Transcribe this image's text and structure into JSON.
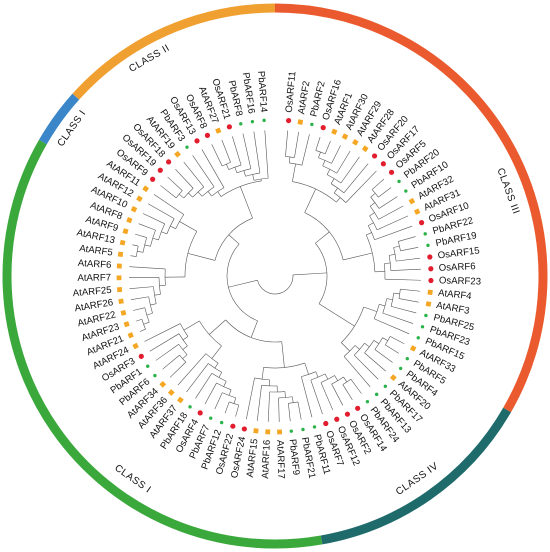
{
  "figure": {
    "classes": [
      {
        "label": "CLASS I",
        "color": "#3a86c8"
      },
      {
        "label": "CLASS II",
        "color": "#f0a030"
      },
      {
        "label": "CLASS III",
        "color": "#ea5a2e"
      },
      {
        "label": "CLASS IV",
        "color": "#1f6b6b"
      },
      {
        "label": "CLASS I",
        "color": "#3aa83a"
      }
    ],
    "species_colors": {
      "Os": "#e11d2e",
      "At": "#f5a623",
      "Pb": "#2bb34a"
    },
    "leaves": [
      {
        "name": "OsARF11",
        "species": "Os"
      },
      {
        "name": "AtARF2",
        "species": "At"
      },
      {
        "name": "PbARF2",
        "species": "Pb"
      },
      {
        "name": "OsARF16",
        "species": "Os"
      },
      {
        "name": "AtARF1",
        "species": "At"
      },
      {
        "name": "AtARF30",
        "species": "At"
      },
      {
        "name": "AtARF29",
        "species": "At"
      },
      {
        "name": "AtARF28",
        "species": "At"
      },
      {
        "name": "OsARF20",
        "species": "Os"
      },
      {
        "name": "OsARF17",
        "species": "Os"
      },
      {
        "name": "OsARF5",
        "species": "Os"
      },
      {
        "name": "PbARF20",
        "species": "Pb"
      },
      {
        "name": "PbARF10",
        "species": "Pb"
      },
      {
        "name": "AtARF32",
        "species": "At"
      },
      {
        "name": "AtARF31",
        "species": "At"
      },
      {
        "name": "OsARF10",
        "species": "Os"
      },
      {
        "name": "PbARF22",
        "species": "Pb"
      },
      {
        "name": "PbARF19",
        "species": "Pb"
      },
      {
        "name": "OsARF15",
        "species": "Os"
      },
      {
        "name": "OsARF6",
        "species": "Os"
      },
      {
        "name": "OsARF23",
        "species": "Os"
      },
      {
        "name": "AtARF4",
        "species": "At"
      },
      {
        "name": "AtARF3",
        "species": "At"
      },
      {
        "name": "PbARF25",
        "species": "Pb"
      },
      {
        "name": "PbARF23",
        "species": "Pb"
      },
      {
        "name": "PbARF15",
        "species": "Pb"
      },
      {
        "name": "AtARF33",
        "species": "At"
      },
      {
        "name": "PbARF5",
        "species": "Pb"
      },
      {
        "name": "PbARF4",
        "species": "Pb"
      },
      {
        "name": "AtARF20",
        "species": "At"
      },
      {
        "name": "PbARF17",
        "species": "Pb"
      },
      {
        "name": "PbARF13",
        "species": "Pb"
      },
      {
        "name": "PbARF24",
        "species": "Pb"
      },
      {
        "name": "OsARF14",
        "species": "Os"
      },
      {
        "name": "OsARF2",
        "species": "Os"
      },
      {
        "name": "OsARF12",
        "species": "Os"
      },
      {
        "name": "OsARF7",
        "species": "Os"
      },
      {
        "name": "PbARF11",
        "species": "Pb"
      },
      {
        "name": "PbARF21",
        "species": "Pb"
      },
      {
        "name": "PbARF9",
        "species": "Pb"
      },
      {
        "name": "AtARF17",
        "species": "At"
      },
      {
        "name": "AtARF16",
        "species": "At"
      },
      {
        "name": "AtARF15",
        "species": "At"
      },
      {
        "name": "OsARF24",
        "species": "Os"
      },
      {
        "name": "OsARF22",
        "species": "Os"
      },
      {
        "name": "PbARF12",
        "species": "Pb"
      },
      {
        "name": "PbARF7",
        "species": "Pb"
      },
      {
        "name": "OsARF4",
        "species": "Os"
      },
      {
        "name": "PbARF18",
        "species": "Pb"
      },
      {
        "name": "AtARF37",
        "species": "At"
      },
      {
        "name": "AtARF36",
        "species": "At"
      },
      {
        "name": "AtARF34",
        "species": "At"
      },
      {
        "name": "PbARF6",
        "species": "Pb"
      },
      {
        "name": "PbARF1",
        "species": "Pb"
      },
      {
        "name": "OsARF3",
        "species": "Os"
      },
      {
        "name": "AtARF24",
        "species": "At"
      },
      {
        "name": "AtARF21",
        "species": "At"
      },
      {
        "name": "AtARF23",
        "species": "At"
      },
      {
        "name": "AtARF22",
        "species": "At"
      },
      {
        "name": "AtARF26",
        "species": "At"
      },
      {
        "name": "AtARF25",
        "species": "At"
      },
      {
        "name": "AtARF7",
        "species": "At"
      },
      {
        "name": "AtARF6",
        "species": "At"
      },
      {
        "name": "AtARF5",
        "species": "At"
      },
      {
        "name": "AtARF13",
        "species": "At"
      },
      {
        "name": "AtARF9",
        "species": "At"
      },
      {
        "name": "AtARF8",
        "species": "At"
      },
      {
        "name": "AtARF10",
        "species": "At"
      },
      {
        "name": "AtARF12",
        "species": "At"
      },
      {
        "name": "AtARF11",
        "species": "At"
      },
      {
        "name": "OsARF9",
        "species": "Os"
      },
      {
        "name": "OsARF19",
        "species": "Os"
      },
      {
        "name": "OsARF18",
        "species": "Os"
      },
      {
        "name": "AtARF19",
        "species": "At"
      },
      {
        "name": "PbARF3",
        "species": "Pb"
      },
      {
        "name": "OsARF13",
        "species": "Os"
      },
      {
        "name": "OsARF8",
        "species": "Os"
      },
      {
        "name": "AtARF27",
        "species": "At"
      },
      {
        "name": "OsARF21",
        "species": "Os"
      },
      {
        "name": "PbARF8",
        "species": "Pb"
      },
      {
        "name": "PbARF16",
        "species": "Pb"
      },
      {
        "name": "PbARF14",
        "species": "Pb"
      }
    ]
  }
}
